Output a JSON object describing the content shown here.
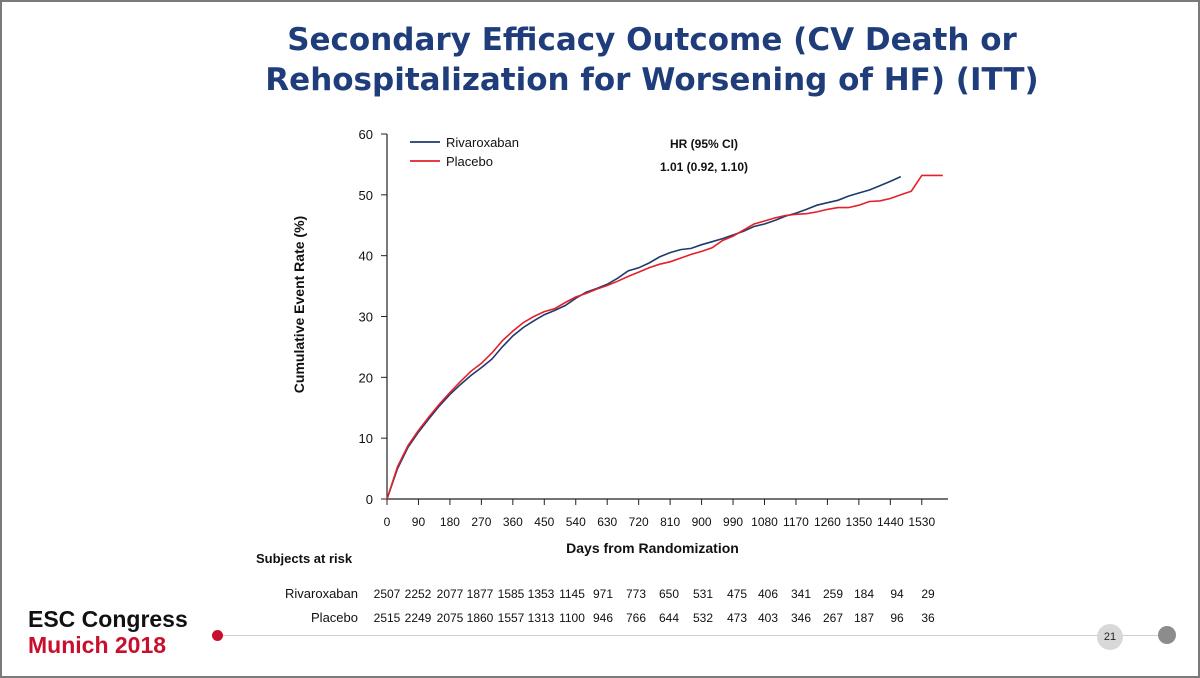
{
  "slide": {
    "title_line1": "Secondary Efficacy Outcome (CV Death or",
    "title_line2": "Rehospitalization for Worsening of HF) (ITT)",
    "page_number": "21",
    "logo_line1": "ESC Congress",
    "logo_line2": "Munich 2018",
    "colors": {
      "title": "#1f3d7a",
      "rivaroxaban": "#1f3a6e",
      "placebo": "#e4202a",
      "brand_red": "#c8102e"
    }
  },
  "chart_data": {
    "type": "line",
    "title": "",
    "xlabel": "Days from Randomization",
    "ylabel": "Cumulative Event Rate (%)",
    "xlim": [
      0,
      1605
    ],
    "ylim": [
      0,
      60
    ],
    "x_ticks": [
      0,
      90,
      180,
      270,
      360,
      450,
      540,
      630,
      720,
      810,
      900,
      990,
      1080,
      1170,
      1260,
      1350,
      1440,
      1530
    ],
    "y_ticks": [
      0,
      10,
      20,
      30,
      40,
      50,
      60
    ],
    "grid": false,
    "legend_position": "top-left",
    "annotation": {
      "line1": "HR (95% CI)",
      "line2": "1.01 (0.92, 1.10)"
    },
    "series": [
      {
        "name": "Rivaroxaban",
        "color": "#1f3a6e",
        "x": [
          0,
          30,
          60,
          90,
          120,
          150,
          180,
          210,
          240,
          270,
          300,
          330,
          360,
          390,
          420,
          450,
          480,
          510,
          540,
          570,
          600,
          630,
          660,
          690,
          720,
          750,
          780,
          810,
          840,
          870,
          900,
          930,
          960,
          990,
          1020,
          1050,
          1080,
          1110,
          1140,
          1170,
          1200,
          1230,
          1260,
          1290,
          1320,
          1350,
          1380,
          1410,
          1440,
          1470
        ],
        "y": [
          0,
          5.0,
          8.5,
          11.0,
          13.2,
          15.3,
          17.2,
          18.8,
          20.3,
          21.6,
          23.0,
          25.0,
          26.8,
          28.2,
          29.3,
          30.3,
          31.0,
          31.8,
          33.0,
          34.0,
          34.6,
          35.3,
          36.3,
          37.5,
          38.0,
          38.8,
          39.8,
          40.5,
          41.0,
          41.2,
          41.8,
          42.3,
          42.8,
          43.4,
          44.0,
          44.8,
          45.2,
          45.8,
          46.5,
          47.0,
          47.6,
          48.3,
          48.7,
          49.1,
          49.8,
          50.3,
          50.8,
          51.5,
          52.2,
          53.0
        ]
      },
      {
        "name": "Placebo",
        "color": "#e4202a",
        "x": [
          0,
          30,
          60,
          90,
          120,
          150,
          180,
          210,
          240,
          270,
          300,
          330,
          360,
          390,
          420,
          450,
          480,
          510,
          540,
          570,
          600,
          630,
          660,
          690,
          720,
          750,
          780,
          810,
          840,
          870,
          900,
          930,
          960,
          990,
          1020,
          1050,
          1080,
          1110,
          1140,
          1170,
          1200,
          1230,
          1260,
          1290,
          1320,
          1350,
          1380,
          1410,
          1440,
          1470,
          1500,
          1530,
          1560,
          1590
        ],
        "y": [
          0,
          5.3,
          8.8,
          11.3,
          13.5,
          15.6,
          17.5,
          19.3,
          21.0,
          22.3,
          24.0,
          26.0,
          27.6,
          29.0,
          30.0,
          30.8,
          31.3,
          32.3,
          33.2,
          33.8,
          34.5,
          35.1,
          35.8,
          36.6,
          37.3,
          38.0,
          38.6,
          39.0,
          39.6,
          40.2,
          40.7,
          41.3,
          42.5,
          43.2,
          44.2,
          45.2,
          45.7,
          46.2,
          46.6,
          46.8,
          46.9,
          47.2,
          47.6,
          47.9,
          47.9,
          48.3,
          48.9,
          49.0,
          49.4,
          50.0,
          50.6,
          53.2,
          53.2,
          53.2
        ]
      }
    ],
    "at_risk": {
      "header": "Subjects at risk",
      "rows": [
        {
          "label": "Rivaroxaban",
          "values": [
            "2507",
            "2252",
            "2077",
            "1877",
            "1585",
            "1353",
            "1145",
            "971",
            "773",
            "650",
            "531",
            "475",
            "406",
            "341",
            "259",
            "184",
            "94",
            "29"
          ]
        },
        {
          "label": "Placebo",
          "values": [
            "2515",
            "2249",
            "2075",
            "1860",
            "1557",
            "1313",
            "1100",
            "946",
            "766",
            "644",
            "532",
            "473",
            "403",
            "346",
            "267",
            "187",
            "96",
            "36"
          ]
        }
      ]
    }
  }
}
